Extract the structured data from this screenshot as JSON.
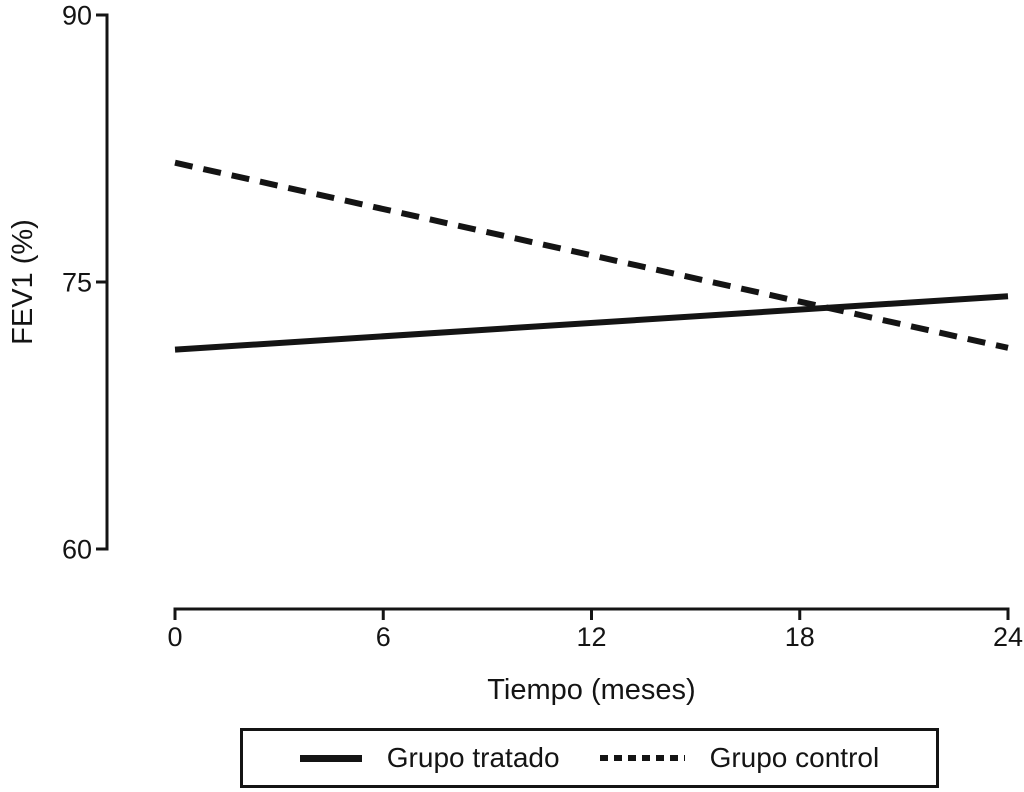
{
  "chart_data": {
    "type": "line",
    "title": "",
    "xlabel": "Tiempo (meses)",
    "ylabel": "FEV1 (%)",
    "xlim": [
      0,
      24
    ],
    "ylim": [
      60,
      90
    ],
    "x_ticks": [
      0,
      6,
      12,
      18,
      24
    ],
    "y_ticks": [
      90,
      75,
      60
    ],
    "grid": false,
    "line_color": "#141414",
    "legend_position": "bottom-center-boxed",
    "series": [
      {
        "name": "Grupo tratado",
        "style": "solid",
        "x": [
          0,
          24
        ],
        "y": [
          71.2,
          74.2
        ]
      },
      {
        "name": "Grupo control",
        "style": "dashed",
        "x": [
          0,
          24
        ],
        "y": [
          81.7,
          71.3
        ]
      }
    ]
  },
  "legend": {
    "items": [
      {
        "label": "Grupo tratado",
        "style": "solid"
      },
      {
        "label": "Grupo control",
        "style": "dashed"
      }
    ]
  }
}
